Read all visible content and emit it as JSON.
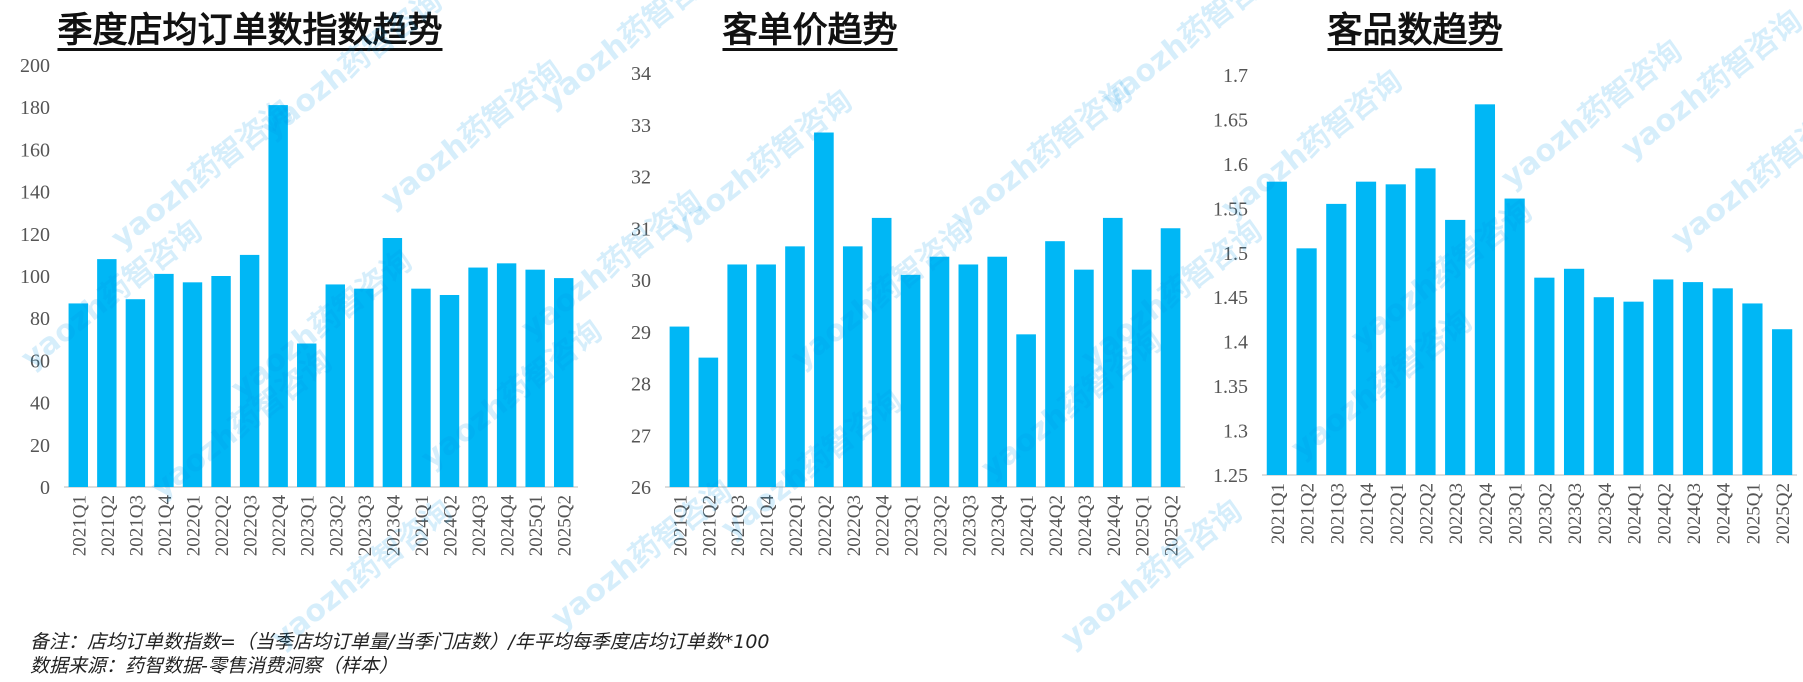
{
  "watermark": "yaozh药智咨询",
  "notes": {
    "line1": "备注：店均订单数指数=（当季店均订单量/当季门店数）/年平均每季度店均订单数*100",
    "line2": "数据来源：药智数据-零售消费洞察（样本）"
  },
  "chart_data": [
    {
      "type": "bar",
      "title": "季度店均订单数指数趋势",
      "color": "#00B7F5",
      "categories": [
        "2021Q1",
        "2021Q2",
        "2021Q3",
        "2021Q4",
        "2022Q1",
        "2022Q2",
        "2022Q3",
        "2022Q4",
        "2023Q1",
        "2023Q2",
        "2023Q3",
        "2023Q4",
        "2024Q1",
        "2024Q2",
        "2024Q3",
        "2024Q4",
        "2025Q1",
        "2025Q2"
      ],
      "values": [
        87,
        108,
        89,
        101,
        97,
        100,
        110,
        181,
        68,
        96,
        94,
        118,
        94,
        91,
        104,
        106,
        103,
        99
      ],
      "ylim": [
        0,
        200
      ],
      "yticks": [
        "0",
        "20",
        "40",
        "60",
        "80",
        "100",
        "120",
        "140",
        "160",
        "180",
        "200"
      ],
      "ytick_values": [
        0,
        20,
        40,
        60,
        80,
        100,
        120,
        140,
        160,
        180,
        200
      ]
    },
    {
      "type": "bar",
      "title": "客单价趋势",
      "color": "#00B7F5",
      "categories": [
        "2021Q1",
        "2021Q2",
        "2021Q3",
        "2021Q4",
        "2022Q1",
        "2022Q2",
        "2022Q3",
        "2022Q4",
        "2023Q1",
        "2023Q2",
        "2023Q3",
        "2023Q4",
        "2024Q1",
        "2024Q2",
        "2024Q3",
        "2024Q4",
        "2025Q1",
        "2025Q2"
      ],
      "values": [
        29.1,
        28.5,
        30.3,
        30.3,
        30.65,
        32.85,
        30.65,
        31.2,
        30.1,
        30.45,
        30.3,
        30.45,
        28.95,
        30.75,
        30.2,
        31.2,
        30.2,
        31.0
      ],
      "ylim": [
        26,
        34
      ],
      "yticks": [
        "26",
        "27",
        "28",
        "29",
        "30",
        "31",
        "32",
        "33",
        "34"
      ],
      "ytick_values": [
        26,
        27,
        28,
        29,
        30,
        31,
        32,
        33,
        34
      ]
    },
    {
      "type": "bar",
      "title": "客品数趋势",
      "color": "#00B7F5",
      "categories": [
        "2021Q1",
        "2021Q2",
        "2021Q3",
        "2021Q4",
        "2022Q1",
        "2022Q2",
        "2022Q3",
        "2022Q4",
        "2023Q1",
        "2023Q2",
        "2023Q3",
        "2023Q4",
        "2024Q1",
        "2024Q2",
        "2024Q3",
        "2024Q4",
        "2025Q1",
        "2025Q2"
      ],
      "values": [
        1.58,
        1.505,
        1.555,
        1.58,
        1.577,
        1.595,
        1.537,
        1.667,
        1.561,
        1.472,
        1.482,
        1.45,
        1.445,
        1.47,
        1.467,
        1.46,
        1.443,
        1.414
      ],
      "ylim": [
        1.25,
        1.7
      ],
      "yticks": [
        "1.25",
        "1.3",
        "1.35",
        "1.4",
        "1.45",
        "1.5",
        "1.55",
        "1.6",
        "1.65",
        "1.7"
      ],
      "ytick_values": [
        1.25,
        1.3,
        1.35,
        1.4,
        1.45,
        1.5,
        1.55,
        1.6,
        1.65,
        1.7
      ]
    }
  ]
}
